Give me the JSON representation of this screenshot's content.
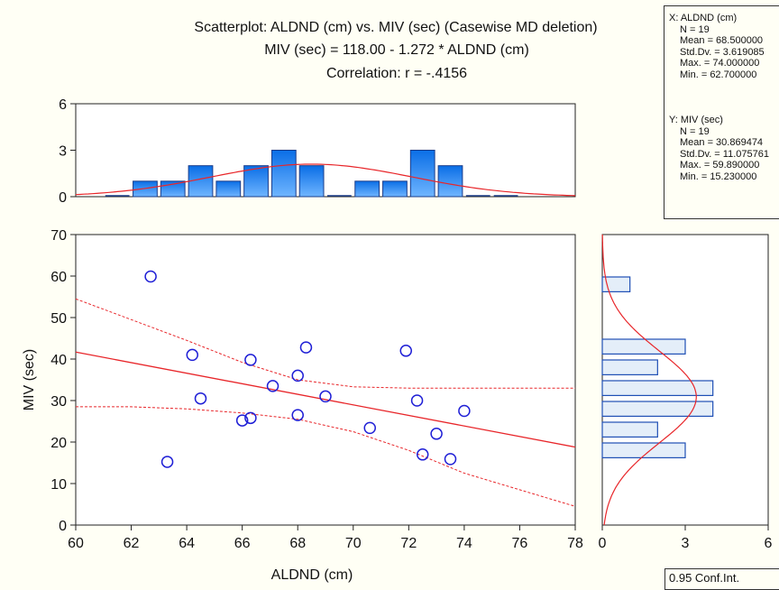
{
  "title": {
    "line1": "Scatterplot: ALDND (cm) vs. MIV (sec) (Casewise MD deletion)",
    "line2": "MIV (sec) = 118.00 - 1.272  * ALDND (cm)",
    "line3": "Correlation: r = -.4156"
  },
  "stats": {
    "x": {
      "header": "X:  ALDND (cm)",
      "n": "N = 19",
      "mean": "Mean = 68.500000",
      "std": "Std.Dv. = 3.619085",
      "max": "Max. = 74.000000",
      "min": "Min. = 62.700000"
    },
    "y": {
      "header": "Y:  MIV (sec)",
      "n": "N = 19",
      "mean": "Mean = 30.869474",
      "std": "Std.Dv. = 11.075761",
      "max": "Max. = 59.890000",
      "min": "Min. = 15.230000"
    }
  },
  "conf_label": "0.95 Conf.Int.",
  "colors": {
    "point": "#1f1fd6",
    "fit": "#e8262a",
    "bar_fill_top": "#0a6ee6",
    "bar_fill_bottom": "#6fb5ff",
    "side_bar_fill": "#e4eef9",
    "side_bar_stroke": "#1f4fb5",
    "background": "#fffff5"
  },
  "chart_data": [
    {
      "type": "scatter",
      "name_hint": "main",
      "xlabel": "ALDND (cm)",
      "ylabel": "MIV (sec)",
      "xlim": [
        60,
        78
      ],
      "ylim": [
        0,
        70
      ],
      "xticks": [
        "60",
        "62",
        "64",
        "66",
        "68",
        "70",
        "72",
        "74",
        "76",
        "78"
      ],
      "yticks": [
        "0",
        "10",
        "20",
        "30",
        "40",
        "50",
        "60",
        "70"
      ],
      "points": [
        {
          "x": 62.7,
          "y": 59.89
        },
        {
          "x": 63.3,
          "y": 15.23
        },
        {
          "x": 64.2,
          "y": 41.0
        },
        {
          "x": 64.5,
          "y": 30.5
        },
        {
          "x": 66.0,
          "y": 25.2
        },
        {
          "x": 66.3,
          "y": 25.8
        },
        {
          "x": 66.3,
          "y": 39.8
        },
        {
          "x": 67.1,
          "y": 33.5
        },
        {
          "x": 68.0,
          "y": 36.0
        },
        {
          "x": 68.0,
          "y": 26.5
        },
        {
          "x": 68.3,
          "y": 42.8
        },
        {
          "x": 69.0,
          "y": 31.0
        },
        {
          "x": 70.6,
          "y": 23.4
        },
        {
          "x": 71.9,
          "y": 42.0
        },
        {
          "x": 72.3,
          "y": 30.0
        },
        {
          "x": 72.5,
          "y": 17.0
        },
        {
          "x": 73.0,
          "y": 22.0
        },
        {
          "x": 73.5,
          "y": 15.9
        },
        {
          "x": 74.0,
          "y": 27.5
        }
      ],
      "fit": {
        "intercept": 118.0,
        "slope": -1.272
      },
      "confidence": {
        "upper": [
          [
            60,
            54.5
          ],
          [
            62,
            49.5
          ],
          [
            64,
            44.5
          ],
          [
            66,
            39.2
          ],
          [
            68,
            35.0
          ],
          [
            70,
            33.3
          ],
          [
            72,
            33.0
          ],
          [
            74,
            33.0
          ],
          [
            76,
            33.0
          ],
          [
            78,
            33.0
          ]
        ],
        "lower": [
          [
            60,
            28.5
          ],
          [
            62,
            28.5
          ],
          [
            64,
            28.0
          ],
          [
            66,
            27.0
          ],
          [
            68,
            25.5
          ],
          [
            70,
            22.5
          ],
          [
            72,
            18.0
          ],
          [
            74,
            12.5
          ],
          [
            76,
            8.5
          ],
          [
            78,
            4.5
          ]
        ]
      }
    },
    {
      "type": "bar",
      "name_hint": "x-histogram",
      "ylim": [
        0,
        6
      ],
      "yticks": [
        "0",
        "3",
        "6"
      ],
      "bins": [
        {
          "x": 62.0,
          "count": 1
        },
        {
          "x": 63.0,
          "count": 1
        },
        {
          "x": 64.0,
          "count": 2
        },
        {
          "x": 65.0,
          "count": 1
        },
        {
          "x": 66.0,
          "count": 2
        },
        {
          "x": 67.0,
          "count": 3
        },
        {
          "x": 68.0,
          "count": 2
        },
        {
          "x": 70.0,
          "count": 1
        },
        {
          "x": 71.0,
          "count": 1
        },
        {
          "x": 72.0,
          "count": 3
        },
        {
          "x": 73.0,
          "count": 2
        }
      ],
      "bin_width": 1.0,
      "normal_curve": {
        "peak": 2.1
      }
    },
    {
      "type": "bar",
      "name_hint": "y-histogram",
      "xlim": [
        0,
        6
      ],
      "xticks": [
        "0",
        "3",
        "6"
      ],
      "bins": [
        {
          "y": 60,
          "count": 1
        },
        {
          "y": 45,
          "count": 3
        },
        {
          "y": 40,
          "count": 2
        },
        {
          "y": 35,
          "count": 4
        },
        {
          "y": 30,
          "count": 4
        },
        {
          "y": 25,
          "count": 2
        },
        {
          "y": 20,
          "count": 3
        }
      ],
      "bin_width": 4.0,
      "normal_curve": {
        "peak": 3.4
      }
    }
  ]
}
